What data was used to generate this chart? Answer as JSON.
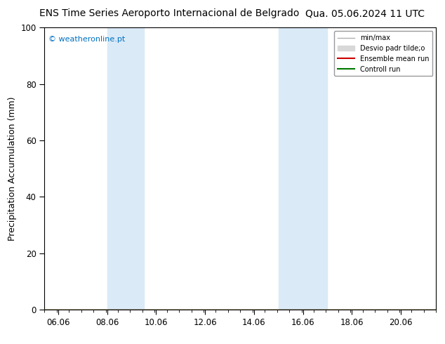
{
  "title_left": "ENS Time Series Aeroporto Internacional de Belgrado",
  "title_right": "Qua. 05.06.2024 11 UTC",
  "ylabel": "Precipitation Accumulation (mm)",
  "ylim": [
    0,
    100
  ],
  "yticks": [
    0,
    20,
    40,
    60,
    80,
    100
  ],
  "xlim": [
    5.5,
    21.5
  ],
  "xticks": [
    6.06,
    8.06,
    10.06,
    12.06,
    14.06,
    16.06,
    18.06,
    20.06
  ],
  "xtick_labels": [
    "06.06",
    "08.06",
    "10.06",
    "12.06",
    "14.06",
    "16.06",
    "18.06",
    "20.06"
  ],
  "shaded_bands": [
    {
      "x_start": 8.06,
      "x_end": 9.56
    },
    {
      "x_start": 15.06,
      "x_end": 17.06
    }
  ],
  "band_color": "#daeaf7",
  "watermark": "© weatheronline.pt",
  "watermark_color": "#0070c0",
  "background_color": "#ffffff",
  "legend_entries": [
    {
      "label": "min/max",
      "color": "#b0b0b0",
      "linestyle": "-",
      "linewidth": 1.0,
      "type": "line"
    },
    {
      "label": "Desvio padr tilde;o",
      "color": "#d8d8d8",
      "linestyle": "-",
      "linewidth": 8.0,
      "type": "patch"
    },
    {
      "label": "Ensemble mean run",
      "color": "#cc0000",
      "linestyle": "-",
      "linewidth": 1.5,
      "type": "line"
    },
    {
      "label": "Controll run",
      "color": "#007700",
      "linestyle": "-",
      "linewidth": 1.5,
      "type": "line"
    }
  ],
  "title_fontsize": 10,
  "axis_fontsize": 9,
  "tick_fontsize": 8.5
}
